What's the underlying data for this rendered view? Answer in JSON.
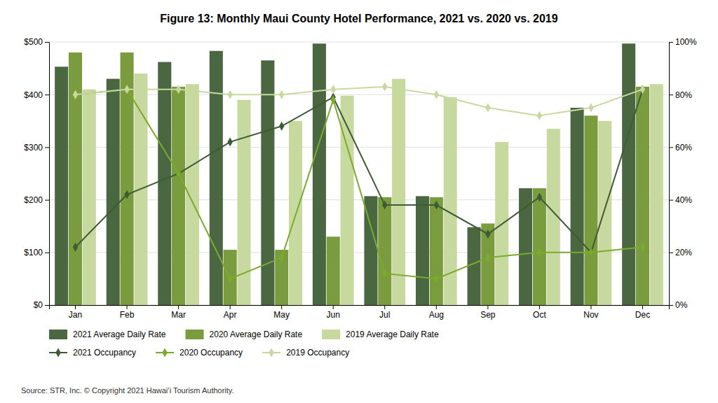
{
  "chart_data": {
    "type": "bar",
    "title": "Figure 13: Monthly Maui County Hotel Performance, 2021 vs. 2020 vs. 2019",
    "categories": [
      "Jan",
      "Feb",
      "Mar",
      "Apr",
      "May",
      "Jun",
      "Jul",
      "Aug",
      "Sep",
      "Oct",
      "Nov",
      "Dec"
    ],
    "series": [
      {
        "name": "2021 Average Daily Rate",
        "type": "bar",
        "color": "#4a6741",
        "values": [
          453,
          430,
          462,
          483,
          465,
          497,
          207,
          207,
          148,
          222,
          375,
          497
        ]
      },
      {
        "name": "2020 Average Daily Rate",
        "type": "bar",
        "color": "#7a9c3e",
        "values": [
          480,
          480,
          415,
          105,
          105,
          130,
          205,
          205,
          155,
          222,
          360,
          415
        ]
      },
      {
        "name": "2019 Average Daily Rate",
        "type": "bar",
        "color": "#c8d9a0",
        "values": [
          410,
          440,
          420,
          390,
          350,
          398,
          430,
          395,
          310,
          335,
          350,
          420
        ]
      },
      {
        "name": "2021 Occupancy",
        "type": "line",
        "axis": "y2",
        "marker": "diamond",
        "color": "#3d5c35",
        "values": [
          0.22,
          0.42,
          0.5,
          0.62,
          0.68,
          0.79,
          0.38,
          0.38,
          0.27,
          0.41,
          0.2,
          0.82
        ]
      },
      {
        "name": "2020 Occupancy",
        "type": "line",
        "axis": "y2",
        "marker": "diamond",
        "color": "#7aaa2e",
        "values": [
          0.8,
          0.82,
          0.5,
          0.1,
          0.18,
          0.78,
          0.12,
          0.1,
          0.18,
          0.2,
          0.2,
          0.22
        ]
      },
      {
        "name": "2019 Occupancy",
        "type": "line",
        "axis": "y2",
        "marker": "diamond",
        "color": "#c8d9a0",
        "values": [
          0.8,
          0.82,
          0.82,
          0.8,
          0.8,
          0.82,
          0.83,
          0.8,
          0.75,
          0.72,
          0.75,
          0.82
        ]
      }
    ],
    "ylim": [
      0,
      500
    ],
    "yticks": [
      {
        "value": 0,
        "label": "$0"
      },
      {
        "value": 100,
        "label": "$100"
      },
      {
        "value": 200,
        "label": "$200"
      },
      {
        "value": 300,
        "label": "$300"
      },
      {
        "value": 400,
        "label": "$400"
      },
      {
        "value": 500,
        "label": "$500"
      }
    ],
    "y2lim": [
      0,
      1.0
    ],
    "y2ticks": [
      {
        "value": 0,
        "label": "0%"
      },
      {
        "value": 0.2,
        "label": "20%"
      },
      {
        "value": 0.4,
        "label": "40%"
      },
      {
        "value": 0.6,
        "label": "60%"
      },
      {
        "value": 0.8,
        "label": "80%"
      },
      {
        "value": 1.0,
        "label": "100%"
      }
    ],
    "grid": true,
    "legend": "bottom",
    "annotations": [
      "Source: STR, Inc.  © Copyright 2021 Hawaiʻi Tourism Authority."
    ]
  }
}
